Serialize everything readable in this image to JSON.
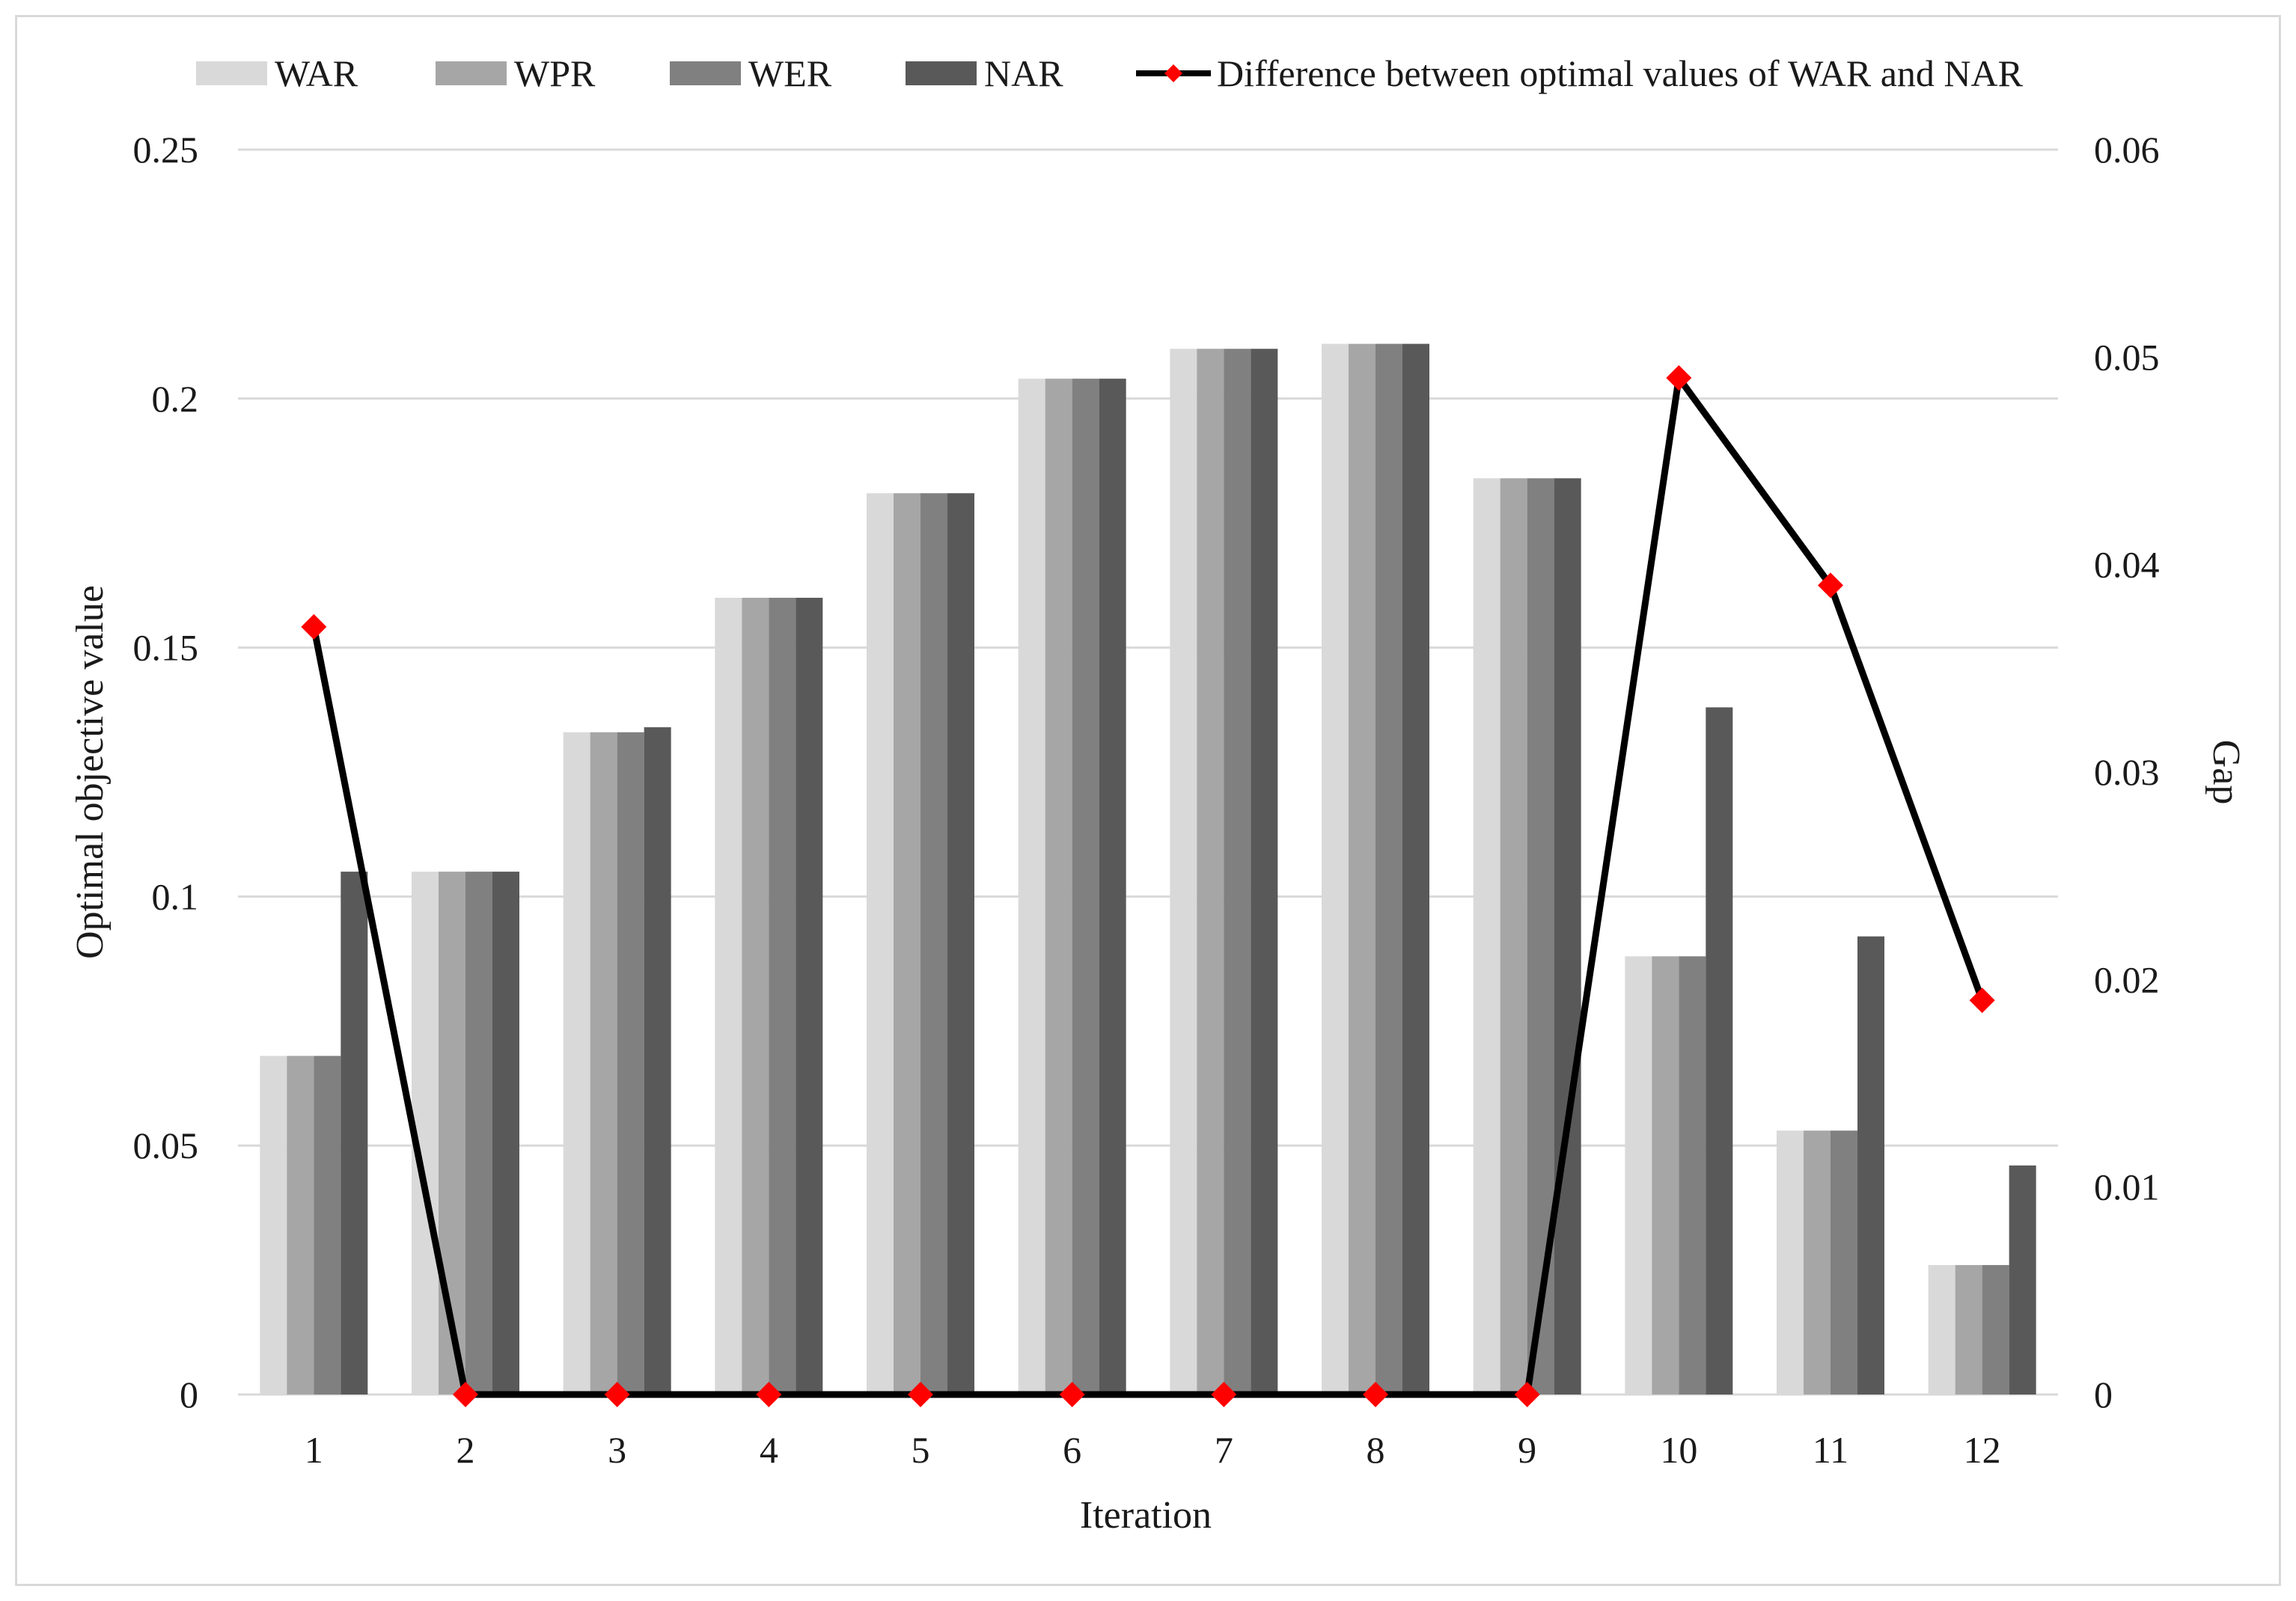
{
  "chart_data": {
    "type": "bar",
    "categories": [
      "1",
      "2",
      "3",
      "4",
      "5",
      "6",
      "7",
      "8",
      "9",
      "10",
      "11",
      "12"
    ],
    "series": [
      {
        "name": "WAR",
        "color": "#d9d9d9",
        "values": [
          0.068,
          0.105,
          0.133,
          0.16,
          0.181,
          0.204,
          0.21,
          0.211,
          0.184,
          0.088,
          0.053,
          0.026
        ]
      },
      {
        "name": "WPR",
        "color": "#a6a6a6",
        "values": [
          0.068,
          0.105,
          0.133,
          0.16,
          0.181,
          0.204,
          0.21,
          0.211,
          0.184,
          0.088,
          0.053,
          0.026
        ]
      },
      {
        "name": "WER",
        "color": "#808080",
        "values": [
          0.068,
          0.105,
          0.133,
          0.16,
          0.181,
          0.204,
          0.21,
          0.211,
          0.184,
          0.088,
          0.053,
          0.026
        ]
      },
      {
        "name": "NAR",
        "color": "#595959",
        "values": [
          0.105,
          0.105,
          0.134,
          0.16,
          0.181,
          0.204,
          0.21,
          0.211,
          0.184,
          0.138,
          0.092,
          0.046
        ]
      }
    ],
    "line_series": {
      "name": "Difference between optimal values of WAR and NAR",
      "axis": "secondary",
      "line_color": "#000000",
      "marker_color": "#ff0000",
      "values": [
        0.037,
        0,
        0,
        0,
        0,
        0,
        0,
        0,
        0,
        0.049,
        0.039,
        0.019
      ]
    },
    "xlabel": "Iteration",
    "ylabel": "Optimal objective value",
    "y2label": "Gap",
    "ylim": [
      0,
      0.25
    ],
    "y2lim": [
      0,
      0.06
    ],
    "yticks": [
      "0",
      "0.05",
      "0.1",
      "0.15",
      "0.2",
      "0.25"
    ],
    "y2ticks": [
      "0",
      "0.01",
      "0.02",
      "0.03",
      "0.04",
      "0.05",
      "0.06"
    ],
    "grid": true,
    "legend_position": "top"
  }
}
